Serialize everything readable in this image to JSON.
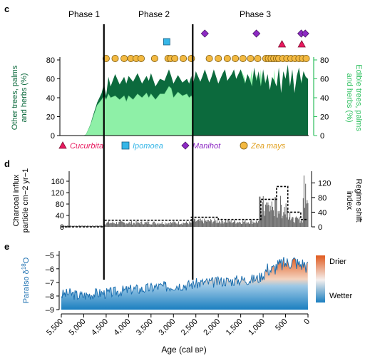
{
  "panel_labels": {
    "c": "c",
    "d": "d",
    "e": "e"
  },
  "phases": [
    {
      "label": "Phase 1",
      "start": 5500,
      "end": 4550
    },
    {
      "label": "Phase 2",
      "start": 4550,
      "end": 2570
    },
    {
      "label": "Phase 3",
      "start": 2570,
      "end": 0
    }
  ],
  "colors": {
    "dark_green": "#0c6a3d",
    "light_green": "#8ef0a7",
    "right_axis_green": "#2bbf5c",
    "cucurbita": "#e8195f",
    "ipomoea": "#36b6e7",
    "manihot": "#8d2ac4",
    "zea_mays": "#f3b941",
    "charcoal_gray": "#707070",
    "o18_blue": "#1b6fb0",
    "drier": "#e05a1e",
    "wetter": "#1b7fc0"
  },
  "legend": [
    {
      "name": "Cucurbita",
      "marker": "triangle"
    },
    {
      "name": "Ipomoea",
      "marker": "square"
    },
    {
      "name": "Manihot",
      "marker": "diamond"
    },
    {
      "name": "Zea mays",
      "marker": "circle"
    }
  ],
  "x_axis": {
    "label_pre": "Age (cal ",
    "label_sc": "BP",
    "label_post": ")",
    "ticks": [
      "5,500",
      "5,000",
      "4,500",
      "4,000",
      "3,500",
      "3,000",
      "2,500",
      "2,000",
      "1,500",
      "1,000",
      "500",
      "0"
    ],
    "range": [
      5500,
      0
    ]
  },
  "chart_data": [
    {
      "panel": "c",
      "type": "area",
      "ylabel_left": "Other trees, palms and herbs (%)",
      "ylabel_right": "Edible trees, palms and herbs (%)",
      "ylim": [
        0,
        80
      ],
      "yticks": [
        0,
        20,
        40,
        60,
        80
      ],
      "series": [
        {
          "x": [
            5500,
            5400,
            5300,
            5200,
            5100,
            5000,
            4950,
            4850,
            4800,
            4700,
            4600,
            4550,
            4500,
            4450,
            4400,
            4300,
            4200,
            4100,
            4050,
            4000,
            3900,
            3800,
            3700,
            3600,
            3550,
            3500,
            3400,
            3300,
            3200,
            3100,
            3050,
            3000,
            2900,
            2800,
            2700,
            2650,
            2600,
            2570
          ],
          "values": [
            0,
            0,
            0,
            0,
            0,
            0,
            1,
            12,
            20,
            35,
            45,
            55,
            42,
            62,
            52,
            65,
            54,
            62,
            55,
            63,
            57,
            66,
            55,
            63,
            58,
            66,
            52,
            60,
            58,
            70,
            63,
            55,
            64,
            56,
            60,
            55,
            63,
            53
          ]
        },
        {
          "x": [
            5500,
            5400,
            5300,
            5200,
            5100,
            5000,
            4950,
            4850,
            4800,
            4700,
            4600,
            4550,
            4500,
            4450,
            4400,
            4300,
            4200,
            4100,
            4050,
            4000,
            3900,
            3800,
            3700,
            3600,
            3550,
            3500,
            3400,
            3300,
            3200,
            3100,
            3050,
            3000,
            2900,
            2800,
            2700,
            2650,
            2600,
            2570
          ],
          "values": [
            0,
            0,
            0,
            0,
            0,
            0,
            1,
            11,
            18,
            32,
            38,
            42,
            38,
            44,
            40,
            42,
            38,
            42,
            36,
            42,
            38,
            44,
            40,
            45,
            40,
            44,
            38,
            44,
            44,
            52,
            50,
            40,
            46,
            42,
            44,
            40,
            42,
            38
          ]
        },
        {
          "x": [
            2570,
            2500,
            2400,
            2350,
            2300,
            2200,
            2150,
            2100,
            2000,
            1900,
            1850,
            1800,
            1700,
            1650,
            1600,
            1500,
            1400,
            1350,
            1300,
            1250,
            1200,
            1150,
            1100,
            1050,
            1000,
            950,
            900,
            850,
            800,
            750,
            700,
            650,
            600,
            550,
            500,
            450,
            400,
            350,
            300,
            250,
            200,
            150,
            100,
            50,
            0
          ],
          "values": [
            53,
            40,
            55,
            38,
            65,
            35,
            58,
            30,
            50,
            40,
            65,
            35,
            55,
            32,
            45,
            70,
            60,
            35,
            55,
            70,
            40,
            65,
            45,
            70,
            38,
            60,
            30,
            50,
            40,
            70,
            35,
            55,
            45,
            60,
            30,
            50,
            40,
            65,
            35,
            55,
            45,
            60,
            30,
            50,
            55
          ]
        },
        {
          "x": [
            2570,
            2500,
            2400,
            2350,
            2300,
            2200,
            2150,
            2100,
            2000,
            1900,
            1850,
            1800,
            1700,
            1650,
            1600,
            1500,
            1400,
            1350,
            1300,
            1250,
            1200,
            1150,
            1100,
            1050,
            1000,
            950,
            900,
            850,
            800,
            750,
            700,
            650,
            600,
            550,
            500,
            450,
            400,
            350,
            300,
            250,
            200,
            150,
            100,
            50,
            0
          ],
          "values": [
            53,
            68,
            57,
            63,
            70,
            56,
            62,
            70,
            55,
            66,
            70,
            58,
            65,
            70,
            60,
            70,
            55,
            65,
            60,
            52,
            72,
            58,
            68,
            52,
            70,
            55,
            65,
            48,
            62,
            58,
            52,
            72,
            45,
            68,
            60,
            75,
            52,
            70,
            45,
            63,
            72,
            55,
            68,
            62,
            60
          ]
        }
      ],
      "markers": {
        "zea_mays": [
          4500,
          4300,
          4100,
          3950,
          3830,
          3720,
          3420,
          3120,
          3060,
          2970,
          2780,
          2600,
          2200,
          2000,
          1800,
          1620,
          1450,
          1280,
          1120,
          940,
          880,
          820,
          760,
          700,
          650,
          560,
          470,
          380,
          290,
          200,
          120,
          40
        ],
        "ipomoea": [
          3150
        ],
        "manihot": [
          2300,
          1150,
          150,
          60
        ],
        "cucurbita": [
          580,
          140
        ]
      }
    },
    {
      "panel": "d",
      "type": "bar",
      "ylabel_left": "Charcoal influx particle cm−2 yr−1",
      "ylabel_right": "Regime shift index",
      "ylim": [
        0,
        180
      ],
      "yticks": [
        0,
        40,
        80,
        120,
        160
      ],
      "ylim_right": [
        0,
        140
      ],
      "yticks_right": [
        0,
        40,
        80,
        120
      ],
      "bar_segments": [
        {
          "from": 5500,
          "to": 4550,
          "value": 4
        },
        {
          "from": 4550,
          "to": 2600,
          "value": 14
        },
        {
          "from": 2600,
          "to": 1800,
          "value": 20
        },
        {
          "from": 1800,
          "to": 1100,
          "value": 18
        },
        {
          "from": 1100,
          "to": 400,
          "value": 85
        },
        {
          "from": 400,
          "to": 120,
          "value": 25
        },
        {
          "from": 120,
          "to": 0,
          "value": 150
        }
      ],
      "regime_shift": {
        "x": [
          5500,
          4550,
          4550,
          2600,
          2600,
          2000,
          2000,
          1250,
          1250,
          1050,
          1050,
          700,
          700,
          450,
          450,
          160,
          160,
          0
        ],
        "values": [
          0,
          0,
          18,
          18,
          26,
          26,
          20,
          20,
          20,
          20,
          75,
          75,
          110,
          110,
          40,
          40,
          20,
          20
        ]
      }
    },
    {
      "panel": "e",
      "type": "line",
      "ylabel_left": "Paraíso δ18O",
      "ylim": [
        -9,
        -4.7
      ],
      "yticks": [
        -9,
        -8,
        -7,
        -6,
        -5
      ],
      "ytick_labels": [
        "–9",
        "–8",
        "–7",
        "–6",
        "–5"
      ],
      "series": [
        {
          "name": "",
          "x": [
            5500,
            5300,
            5100,
            4900,
            4700,
            4500,
            4300,
            4100,
            3900,
            3700,
            3500,
            3300,
            3100,
            2900,
            2700,
            2500,
            2300,
            2100,
            1900,
            1700,
            1500,
            1300,
            1100,
            1000,
            900,
            800,
            700,
            600,
            500,
            400,
            300,
            200,
            100,
            0
          ],
          "values": [
            -7.9,
            -7.8,
            -8.0,
            -7.9,
            -7.8,
            -7.8,
            -7.7,
            -7.6,
            -7.5,
            -7.5,
            -7.4,
            -7.3,
            -7.3,
            -7.2,
            -7.2,
            -7.1,
            -7.0,
            -7.0,
            -6.9,
            -6.9,
            -6.8,
            -6.8,
            -6.7,
            -6.4,
            -6.0,
            -6.1,
            -5.8,
            -5.7,
            -5.6,
            -5.5,
            -5.4,
            -5.7,
            -5.6,
            -5.9
          ]
        }
      ],
      "colorbar": {
        "top_label": "Drier",
        "bottom_label": "Wetter"
      }
    }
  ]
}
